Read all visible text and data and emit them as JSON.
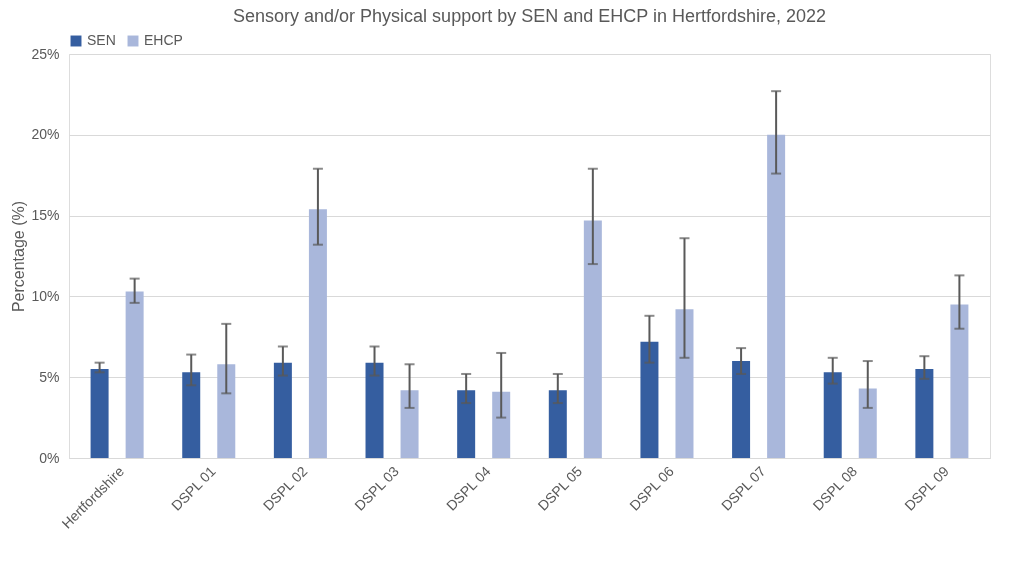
{
  "chart_data": {
    "type": "bar",
    "title": "Sensory and/or Physical support by SEN and EHCP in Hertfordshire, 2022",
    "ylabel": "Percentage (%)",
    "categories": [
      "Hertfordshire",
      "DSPL 01",
      "DSPL 02",
      "DSPL 03",
      "DSPL 04",
      "DSPL 05",
      "DSPL 06",
      "DSPL 07",
      "DSPL 08",
      "DSPL 09"
    ],
    "series": [
      {
        "name": "SEN",
        "color": "#355ea0",
        "values": [
          5.5,
          5.3,
          5.9,
          5.9,
          4.2,
          4.2,
          7.2,
          6.0,
          5.3,
          5.5
        ],
        "errors": [
          [
            5.3,
            5.9
          ],
          [
            4.5,
            6.4
          ],
          [
            5.1,
            6.9
          ],
          [
            5.1,
            6.9
          ],
          [
            3.4,
            5.2
          ],
          [
            3.4,
            5.2
          ],
          [
            5.9,
            8.8
          ],
          [
            5.2,
            6.8
          ],
          [
            4.6,
            6.2
          ],
          [
            4.9,
            6.3
          ]
        ]
      },
      {
        "name": "EHCP",
        "color": "#a9b7db",
        "values": [
          10.3,
          5.8,
          15.4,
          4.2,
          4.1,
          14.7,
          9.2,
          20.0,
          4.3,
          9.5
        ],
        "errors": [
          [
            9.6,
            11.1
          ],
          [
            4.0,
            8.3
          ],
          [
            13.2,
            17.9
          ],
          [
            3.1,
            5.8
          ],
          [
            2.5,
            6.5
          ],
          [
            12.0,
            17.9
          ],
          [
            6.2,
            13.6
          ],
          [
            17.6,
            22.7
          ],
          [
            3.1,
            6.0
          ],
          [
            8.0,
            11.3
          ]
        ]
      }
    ],
    "ylim": [
      0,
      25
    ],
    "yticks": [
      {
        "value": 0,
        "label": "0%"
      },
      {
        "value": 5,
        "label": "5%"
      },
      {
        "value": 10,
        "label": "10%"
      },
      {
        "value": 15,
        "label": "15%"
      },
      {
        "value": 20,
        "label": "20%"
      },
      {
        "value": 25,
        "label": "25%"
      }
    ],
    "grid": "y",
    "legend": "top"
  }
}
